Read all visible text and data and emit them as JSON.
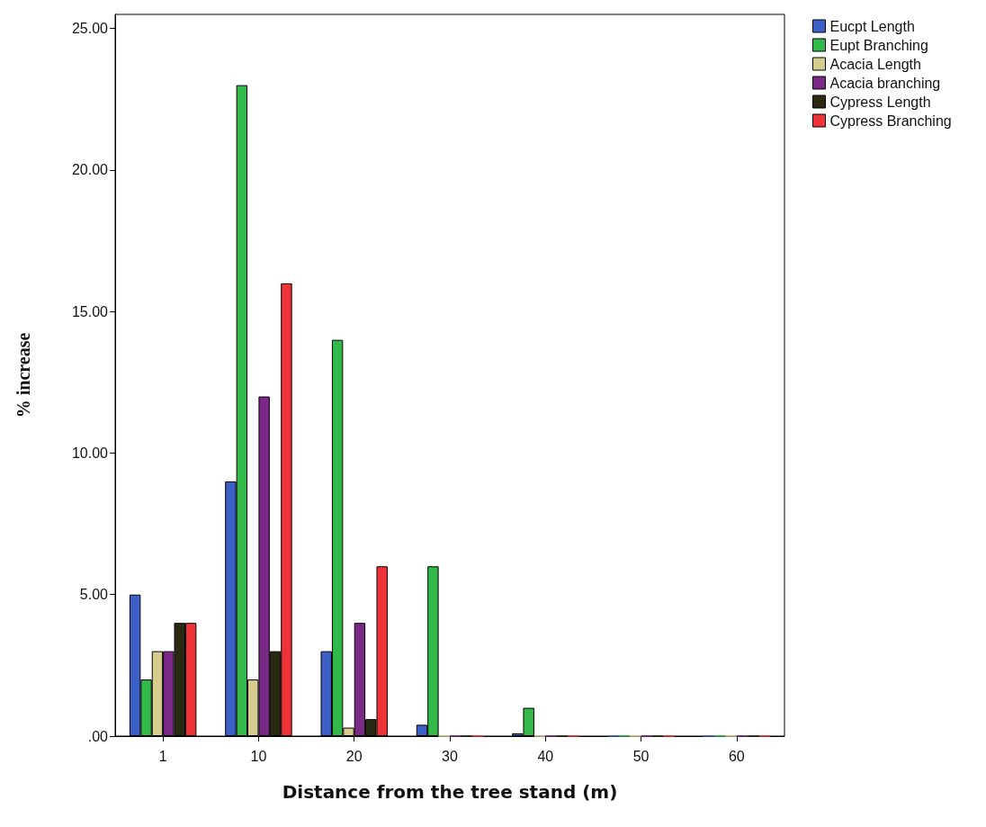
{
  "chart_data": {
    "type": "bar",
    "xlabel": "Distance from the tree stand (m)",
    "ylabel": "% increase",
    "categories": [
      "1",
      "10",
      "20",
      "30",
      "40",
      "50",
      "60"
    ],
    "series": [
      {
        "name": "Eucpt Length",
        "color": "#3c5fc8",
        "values": [
          5,
          9,
          3,
          0.4,
          0.1,
          0,
          0
        ]
      },
      {
        "name": "Eupt Branching",
        "color": "#33b84a",
        "values": [
          2,
          23,
          14,
          6,
          1,
          0,
          0
        ]
      },
      {
        "name": "Acacia Length",
        "color": "#d6cc8e",
        "values": [
          3,
          2,
          0.3,
          0,
          0,
          0,
          0
        ]
      },
      {
        "name": "Acacia branching",
        "color": "#7a2a86",
        "values": [
          3,
          12,
          4,
          0,
          0,
          0,
          0
        ]
      },
      {
        "name": "Cypress Length",
        "color": "#2a2a12",
        "values": [
          4,
          3,
          0.6,
          0,
          0,
          0,
          0
        ]
      },
      {
        "name": "Cypress Branching",
        "color": "#ee3338",
        "values": [
          4,
          16,
          6,
          0,
          0,
          0,
          0
        ]
      }
    ],
    "ylim": [
      0,
      25.5
    ],
    "yticks": [
      {
        "value": 0,
        "label": ".00"
      },
      {
        "value": 5,
        "label": "5.00"
      },
      {
        "value": 10,
        "label": "10.00"
      },
      {
        "value": 15,
        "label": "15.00"
      },
      {
        "value": 20,
        "label": "20.00"
      },
      {
        "value": 25,
        "label": "25.00"
      }
    ],
    "grid": false,
    "legend": "top right"
  }
}
